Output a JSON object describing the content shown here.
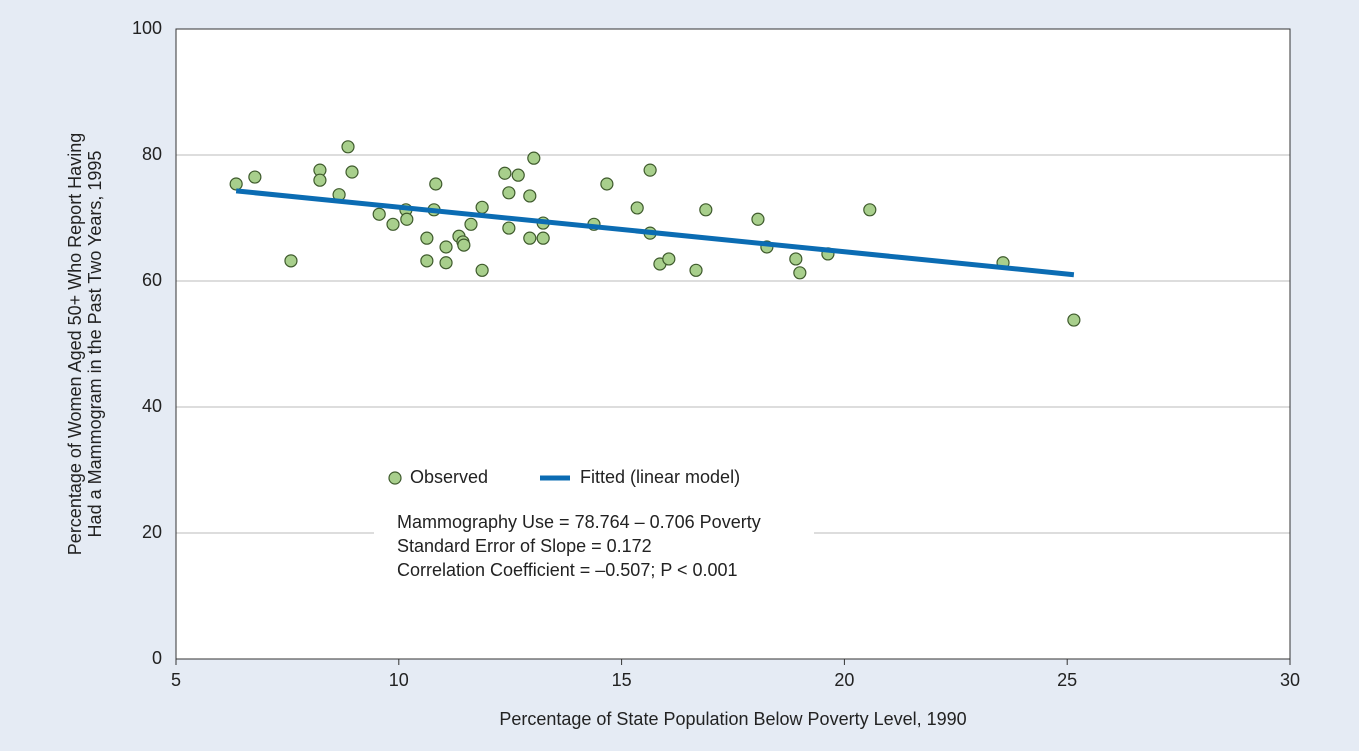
{
  "chart_data": {
    "type": "scatter",
    "xlabel": "Percentage of State Population Below Poverty Level, 1990",
    "ylabel": [
      "Percentage of Women Aged 50+ Who Report Having",
      "Had a Mammogram in the Past Two Years, 1995"
    ],
    "xlim": [
      5,
      30
    ],
    "xticks": [
      5,
      10,
      15,
      20,
      25,
      30
    ],
    "ylim": [
      0,
      100
    ],
    "yticks": [
      0,
      20,
      40,
      60,
      80,
      100
    ],
    "grid": true,
    "series": [
      {
        "name": "Observed",
        "style": "markers",
        "color": "#a8cf8c",
        "x": [
          6.35,
          6.77,
          7.58,
          8.23,
          8.23,
          8.66,
          8.86,
          8.95,
          9.56,
          9.87,
          10.16,
          10.18,
          10.63,
          10.63,
          10.79,
          10.83,
          11.06,
          11.06,
          11.35,
          11.44,
          11.46,
          11.62,
          11.87,
          11.87,
          12.38,
          12.47,
          12.47,
          12.68,
          12.94,
          12.94,
          13.03,
          13.24,
          13.24,
          14.38,
          14.67,
          15.35,
          15.64,
          15.64,
          15.86,
          16.06,
          16.67,
          16.89,
          18.06,
          18.26,
          18.91,
          19.0,
          19.63,
          20.57,
          23.56,
          25.15
        ],
        "y": [
          75.4,
          76.5,
          63.2,
          77.6,
          76.0,
          73.7,
          81.3,
          77.3,
          70.6,
          69.0,
          71.3,
          69.8,
          66.8,
          63.2,
          71.3,
          75.4,
          65.4,
          62.9,
          67.1,
          66.2,
          65.7,
          69.0,
          71.7,
          61.7,
          77.1,
          68.4,
          74.0,
          76.8,
          73.5,
          66.8,
          79.5,
          69.2,
          66.8,
          69.0,
          75.4,
          71.6,
          77.6,
          67.6,
          62.7,
          63.5,
          61.7,
          71.3,
          69.8,
          65.4,
          63.5,
          61.3,
          64.3,
          71.3,
          62.9,
          53.8
        ]
      },
      {
        "name": "Fitted (linear model)",
        "style": "line",
        "color": "#0b6cb3",
        "x": [
          6.35,
          25.15
        ],
        "y": [
          74.3,
          61.0
        ]
      }
    ],
    "annotations": [
      "Mammography Use = 78.764 – 0.706 Poverty",
      "Standard Error of Slope = 0.172",
      "Correlation Coefficient = –0.507; P < 0.001"
    ]
  }
}
